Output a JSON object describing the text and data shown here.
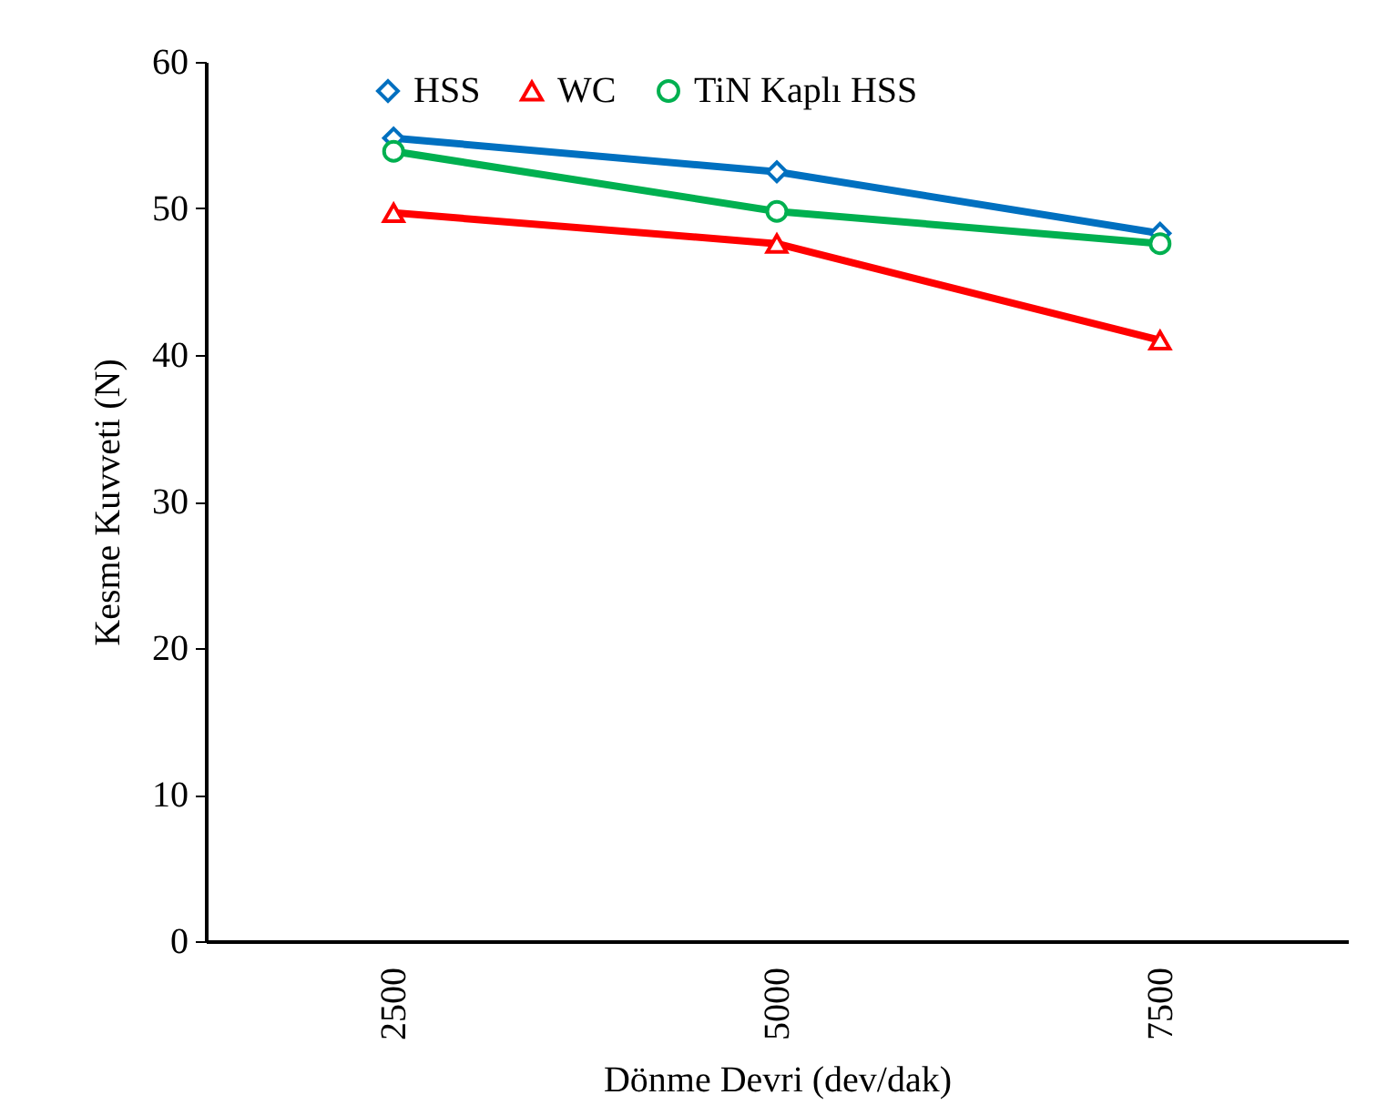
{
  "chart_data": {
    "type": "line",
    "xlabel": "Dönme Devri (dev/dak)",
    "ylabel": "Kesme Kuvveti (N)",
    "categories": [
      "2500",
      "5000",
      "7500"
    ],
    "series": [
      {
        "name": "HSS",
        "color": "#0070c0",
        "marker": "diamond",
        "values": [
          54.8,
          52.5,
          48.3
        ]
      },
      {
        "name": "WC",
        "color": "#ff0000",
        "marker": "triangle",
        "values": [
          49.7,
          47.6,
          41.0
        ]
      },
      {
        "name": "TiN Kaplı HSS",
        "color": "#00b050",
        "marker": "circle",
        "values": [
          53.9,
          49.8,
          47.6
        ]
      }
    ],
    "ylim": [
      0,
      60
    ],
    "yticks": [
      0,
      10,
      20,
      30,
      40,
      50,
      60
    ],
    "grid": false,
    "legend": "top",
    "line_style": "solid"
  }
}
